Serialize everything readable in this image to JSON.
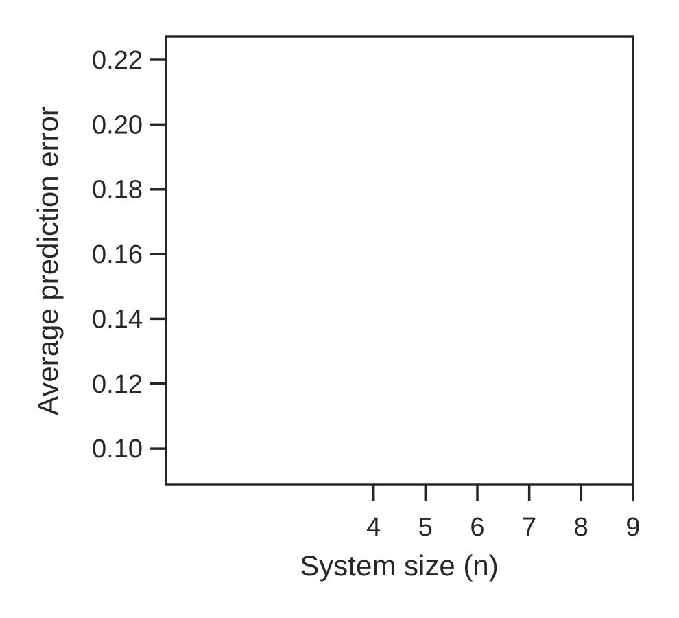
{
  "chart_data": {
    "type": "line",
    "title": "",
    "xlabel": "System size (n)",
    "ylabel": "Average prediction error",
    "xlim": [
      0,
      9
    ],
    "ylim": [
      0.0888,
      0.2272
    ],
    "xticks": [
      4,
      5,
      6,
      7,
      8,
      9
    ],
    "yticks": [
      0.1,
      0.12,
      0.14,
      0.16,
      0.18,
      0.2,
      0.22
    ],
    "xtick_labels": [
      "4",
      "5",
      "6",
      "7",
      "8",
      "9"
    ],
    "ytick_labels": [
      "0.10",
      "0.12",
      "0.14",
      "0.16",
      "0.18",
      "0.20",
      "0.22"
    ],
    "series": [],
    "grid": false,
    "legend": "none",
    "colors": {
      "axis": "#262626",
      "background": "#ffffff"
    }
  }
}
